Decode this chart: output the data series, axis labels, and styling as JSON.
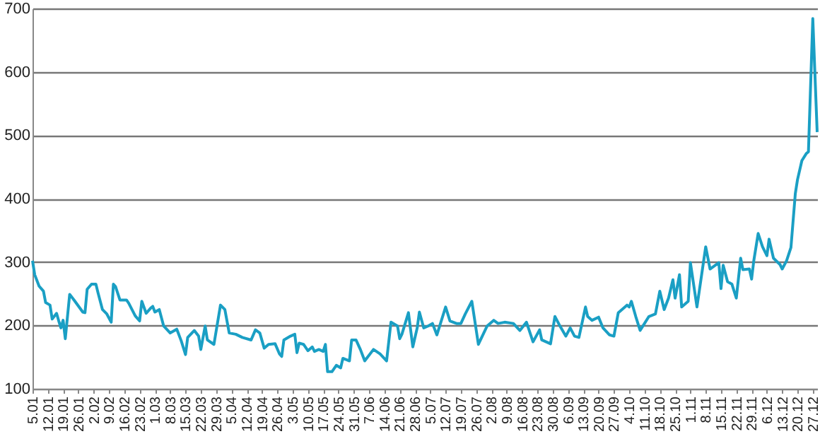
{
  "chart_data": {
    "type": "line",
    "x": [
      "--01-05",
      "--01-06",
      "--01-08",
      "--01-10",
      "--01-11",
      "--01-13",
      "--01-14",
      "--01-16",
      "--01-17",
      "--01-18",
      "--01-19",
      "--01-20",
      "--01-22",
      "--01-24",
      "--01-28",
      "--01-29",
      "--01-30",
      "--02-01",
      "--02-03",
      "--02-04",
      "--02-06",
      "--02-08",
      "--02-10",
      "--02-11",
      "--02-12",
      "--02-14",
      "--02-17",
      "--02-18",
      "--02-21",
      "--02-23",
      "--02-24",
      "--02-26",
      "--02-28",
      "--02-29",
      "--03-01",
      "--03-03",
      "--03-05",
      "--03-08",
      "--03-11",
      "--03-13",
      "--03-15",
      "--03-16",
      "--03-19",
      "--03-21",
      "--03-22",
      "--03-24",
      "--03-25",
      "--03-28",
      "--03-31",
      "--04-02",
      "--04-04",
      "--04-07",
      "--04-10",
      "--04-14",
      "--04-16",
      "--04-18",
      "--04-20",
      "--04-22",
      "--04-25",
      "--04-27",
      "--04-28",
      "--04-29",
      "--05-02",
      "--05-04",
      "--05-05",
      "--05-06",
      "--05-08",
      "--05-10",
      "--05-12",
      "--05-13",
      "--05-15",
      "--05-17",
      "--05-18",
      "--05-19",
      "--05-21",
      "--05-23",
      "--05-25",
      "--05-26",
      "--05-29",
      "--05-30",
      "--06-01",
      "--06-03",
      "--06-05",
      "--06-09",
      "--06-12",
      "--06-15",
      "--06-17",
      "--06-20",
      "--06-21",
      "--06-22",
      "--06-25",
      "--06-27",
      "--06-29",
      "--06-30",
      "--07-02",
      "--07-04",
      "--07-06",
      "--07-08",
      "--07-12",
      "--07-14",
      "--07-17",
      "--07-19",
      "--07-21",
      "--07-24",
      "--07-27",
      "--07-31",
      "--08-03",
      "--08-05",
      "--08-08",
      "--08-12",
      "--08-15",
      "--08-18",
      "--08-21",
      "--08-24",
      "--08-25",
      "--08-29",
      "--08-31",
      "--09-02",
      "--09-05",
      "--09-07",
      "--09-09",
      "--09-11",
      "--09-14",
      "--09-15",
      "--09-17",
      "--09-20",
      "--09-22",
      "--09-25",
      "--09-27",
      "--09-29",
      "--10-03",
      "--10-04",
      "--10-05",
      "--10-07",
      "--10-09",
      "--10-11",
      "--10-13",
      "--10-16",
      "--10-18",
      "--10-20",
      "--10-22",
      "--10-24",
      "--10-25",
      "--10-27",
      "--10-28",
      "--10-31",
      "--11-01",
      "--11-04",
      "--11-08",
      "--11-10",
      "--11-14",
      "--11-15",
      "--11-16",
      "--11-18",
      "--11-20",
      "--11-22",
      "--11-24",
      "--11-25",
      "--11-28",
      "--11-29",
      "--11-30",
      "--12-02",
      "--12-04",
      "--12-06",
      "--12-07",
      "--12-09",
      "--12-12",
      "--12-13",
      "--12-15",
      "--12-17",
      "--12-19",
      "--12-20",
      "--12-22",
      "--12-24",
      "--12-25",
      "--12-27",
      "--12-29"
    ],
    "series": [
      {
        "color": "#1a9fc4",
        "values": [
          302,
          280,
          262,
          254,
          236,
          232,
          210,
          219,
          207,
          196,
          208,
          179,
          249,
          240,
          221,
          220,
          257,
          265,
          265,
          251,
          225,
          218,
          205,
          265,
          261,
          240,
          240,
          235,
          215,
          207,
          238,
          219,
          227,
          230,
          221,
          225,
          199,
          188,
          194,
          176,
          154,
          181,
          192,
          183,
          162,
          199,
          177,
          170,
          232,
          225,
          188,
          186,
          181,
          177,
          193,
          188,
          164,
          170,
          171,
          155,
          151,
          177,
          183,
          186,
          157,
          172,
          170,
          160,
          166,
          159,
          162,
          159,
          170,
          127,
          127,
          137,
          133,
          148,
          144,
          177,
          177,
          162,
          144,
          162,
          155,
          144,
          205,
          199,
          179,
          186,
          220,
          166,
          196,
          221,
          196,
          199,
          203,
          185,
          229,
          207,
          203,
          203,
          218,
          238,
          170,
          199,
          208,
          203,
          205,
          203,
          192,
          205,
          174,
          193,
          177,
          171,
          214,
          201,
          183,
          196,
          183,
          181,
          229,
          214,
          208,
          213,
          196,
          185,
          183,
          220,
          232,
          229,
          238,
          214,
          192,
          203,
          214,
          218,
          254,
          225,
          243,
          272,
          243,
          280,
          229,
          238,
          299,
          229,
          324,
          289,
          299,
          258,
          295,
          269,
          265,
          243,
          306,
          288,
          289,
          273,
          302,
          345,
          324,
          310,
          336,
          306,
          296,
          289,
          302,
          323,
          408,
          430,
          460,
          471,
          474,
          684,
          505
        ]
      }
    ],
    "xlim": [
      "--01-05",
      "--12-29"
    ],
    "xticks": [
      {
        "value": "--01-05",
        "label": "5.01"
      },
      {
        "value": "--01-12",
        "label": "12.01"
      },
      {
        "value": "--01-19",
        "label": "19.01"
      },
      {
        "value": "--01-26",
        "label": "26.01"
      },
      {
        "value": "--02-02",
        "label": "2.02"
      },
      {
        "value": "--02-09",
        "label": "9.02"
      },
      {
        "value": "--02-16",
        "label": "16.02"
      },
      {
        "value": "--02-23",
        "label": "23.02"
      },
      {
        "value": "--03-01",
        "label": "1.03"
      },
      {
        "value": "--03-08",
        "label": "8.03"
      },
      {
        "value": "--03-15",
        "label": "15.03"
      },
      {
        "value": "--03-22",
        "label": "22.03"
      },
      {
        "value": "--03-29",
        "label": "29.03"
      },
      {
        "value": "--04-05",
        "label": "5.04"
      },
      {
        "value": "--04-12",
        "label": "12.04"
      },
      {
        "value": "--04-19",
        "label": "19.04"
      },
      {
        "value": "--04-26",
        "label": "26.04"
      },
      {
        "value": "--05-03",
        "label": "3.05"
      },
      {
        "value": "--05-10",
        "label": "10.05"
      },
      {
        "value": "--05-17",
        "label": "17.05"
      },
      {
        "value": "--05-24",
        "label": "24.05"
      },
      {
        "value": "--05-31",
        "label": "31.05"
      },
      {
        "value": "--06-07",
        "label": "7.06"
      },
      {
        "value": "--06-14",
        "label": "14.06"
      },
      {
        "value": "--06-21",
        "label": "21.06"
      },
      {
        "value": "--06-28",
        "label": "28.06"
      },
      {
        "value": "--07-05",
        "label": "5.07"
      },
      {
        "value": "--07-12",
        "label": "12.07"
      },
      {
        "value": "--07-19",
        "label": "19.07"
      },
      {
        "value": "--07-26",
        "label": "26.07"
      },
      {
        "value": "--08-02",
        "label": "2.08"
      },
      {
        "value": "--08-09",
        "label": "9.08"
      },
      {
        "value": "--08-16",
        "label": "16.08"
      },
      {
        "value": "--08-23",
        "label": "23.08"
      },
      {
        "value": "--08-30",
        "label": "30.08"
      },
      {
        "value": "--09-06",
        "label": "6.09"
      },
      {
        "value": "--09-13",
        "label": "13.09"
      },
      {
        "value": "--09-20",
        "label": "20.09"
      },
      {
        "value": "--09-27",
        "label": "27.09"
      },
      {
        "value": "--10-04",
        "label": "4.10"
      },
      {
        "value": "--10-11",
        "label": "11.10"
      },
      {
        "value": "--10-18",
        "label": "18.10"
      },
      {
        "value": "--10-25",
        "label": "25.10"
      },
      {
        "value": "--11-01",
        "label": "1.11"
      },
      {
        "value": "--11-08",
        "label": "8.11"
      },
      {
        "value": "--11-15",
        "label": "15.11"
      },
      {
        "value": "--11-22",
        "label": "22.11"
      },
      {
        "value": "--11-29",
        "label": "29.11"
      },
      {
        "value": "--12-06",
        "label": "6.12"
      },
      {
        "value": "--12-13",
        "label": "13.12"
      },
      {
        "value": "--12-20",
        "label": "20.12"
      },
      {
        "value": "--12-27",
        "label": "27.12"
      }
    ],
    "ylim": [
      100,
      700
    ],
    "yticks": [
      100,
      200,
      300,
      400,
      500,
      600,
      700
    ],
    "grid": "y"
  }
}
